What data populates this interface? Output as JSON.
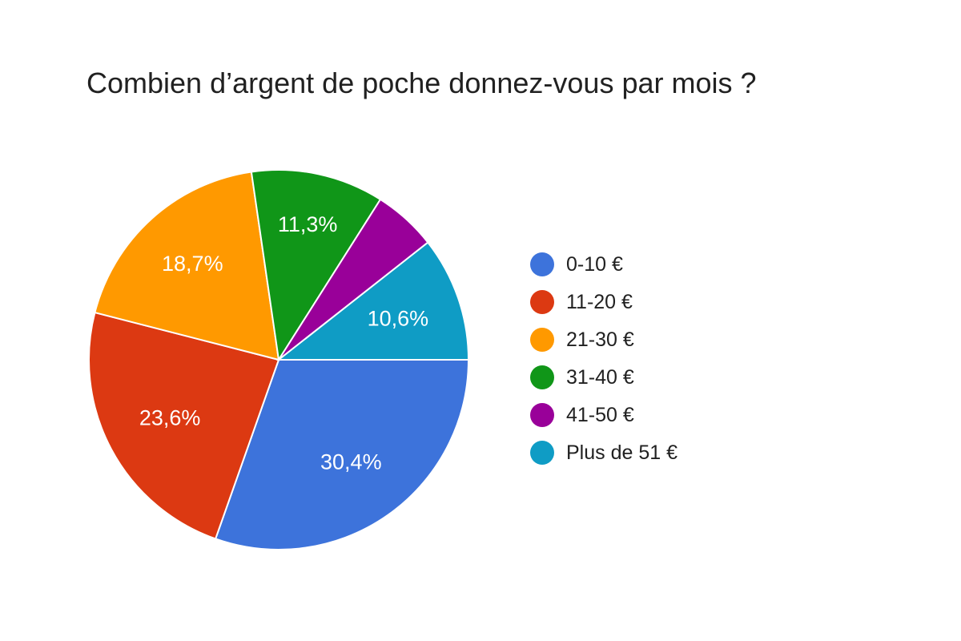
{
  "chart_data": {
    "type": "pie",
    "title": "Combien d’argent de poche donnez-vous par mois ?",
    "categories": [
      "0-10 €",
      "11-20 €",
      "21-30 €",
      "31-40 €",
      "41-50 €",
      "Plus de 51 €"
    ],
    "values": [
      30.4,
      23.6,
      18.7,
      11.3,
      5.4,
      10.6
    ],
    "slice_labels": [
      "30,4%",
      "23,6%",
      "18,7%",
      "11,3%",
      "",
      "10,6%"
    ],
    "colors": [
      "#3D73DB",
      "#DC3912",
      "#FF9900",
      "#109618",
      "#990099",
      "#0F9CC5"
    ],
    "slice_label_color": "#ffffff",
    "slice_separator_color": "#ffffff",
    "start_at": "east",
    "direction": "clockwise",
    "legend_position": "right",
    "label_radius_frac": [
      0.66,
      0.65,
      0.68,
      0.73,
      0.7,
      0.665
    ],
    "title_color": "#212121",
    "legend_text_color": "#212121"
  }
}
